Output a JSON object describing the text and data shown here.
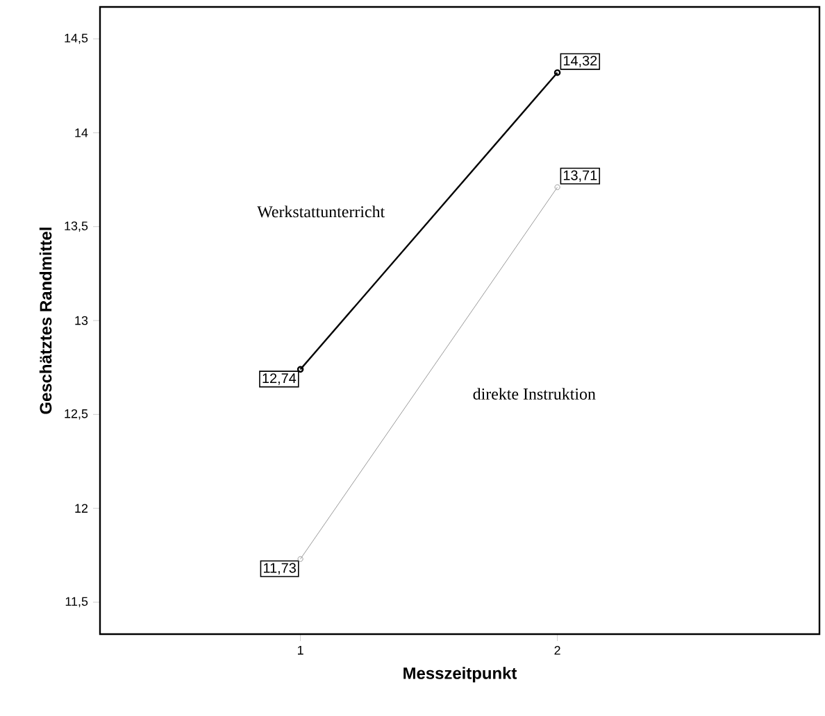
{
  "chart_data": {
    "type": "line",
    "xlabel": "Messzeitpunkt",
    "ylabel": "Geschätztes Randmittel",
    "categories": [
      "1",
      "2"
    ],
    "series": [
      {
        "name": "Werkstattunterricht",
        "color": "#000000",
        "values": [
          12.74,
          14.32
        ],
        "value_labels": [
          "12,74",
          "14,32"
        ]
      },
      {
        "name": "direkte Instruktion",
        "color": "#9a9a9a",
        "values": [
          11.73,
          13.71
        ],
        "value_labels": [
          "11,73",
          "13,71"
        ]
      }
    ],
    "ylim": [
      11.33,
      14.67
    ],
    "yticks": [
      {
        "value": 11.5,
        "label": "11,5"
      },
      12,
      {
        "value": 12.5,
        "label": "12,5"
      },
      13,
      {
        "value": 13.5,
        "label": "13,5"
      },
      14,
      {
        "value": 14.5,
        "label": "14,5"
      }
    ],
    "marker": "circle",
    "line_style": "solid"
  }
}
